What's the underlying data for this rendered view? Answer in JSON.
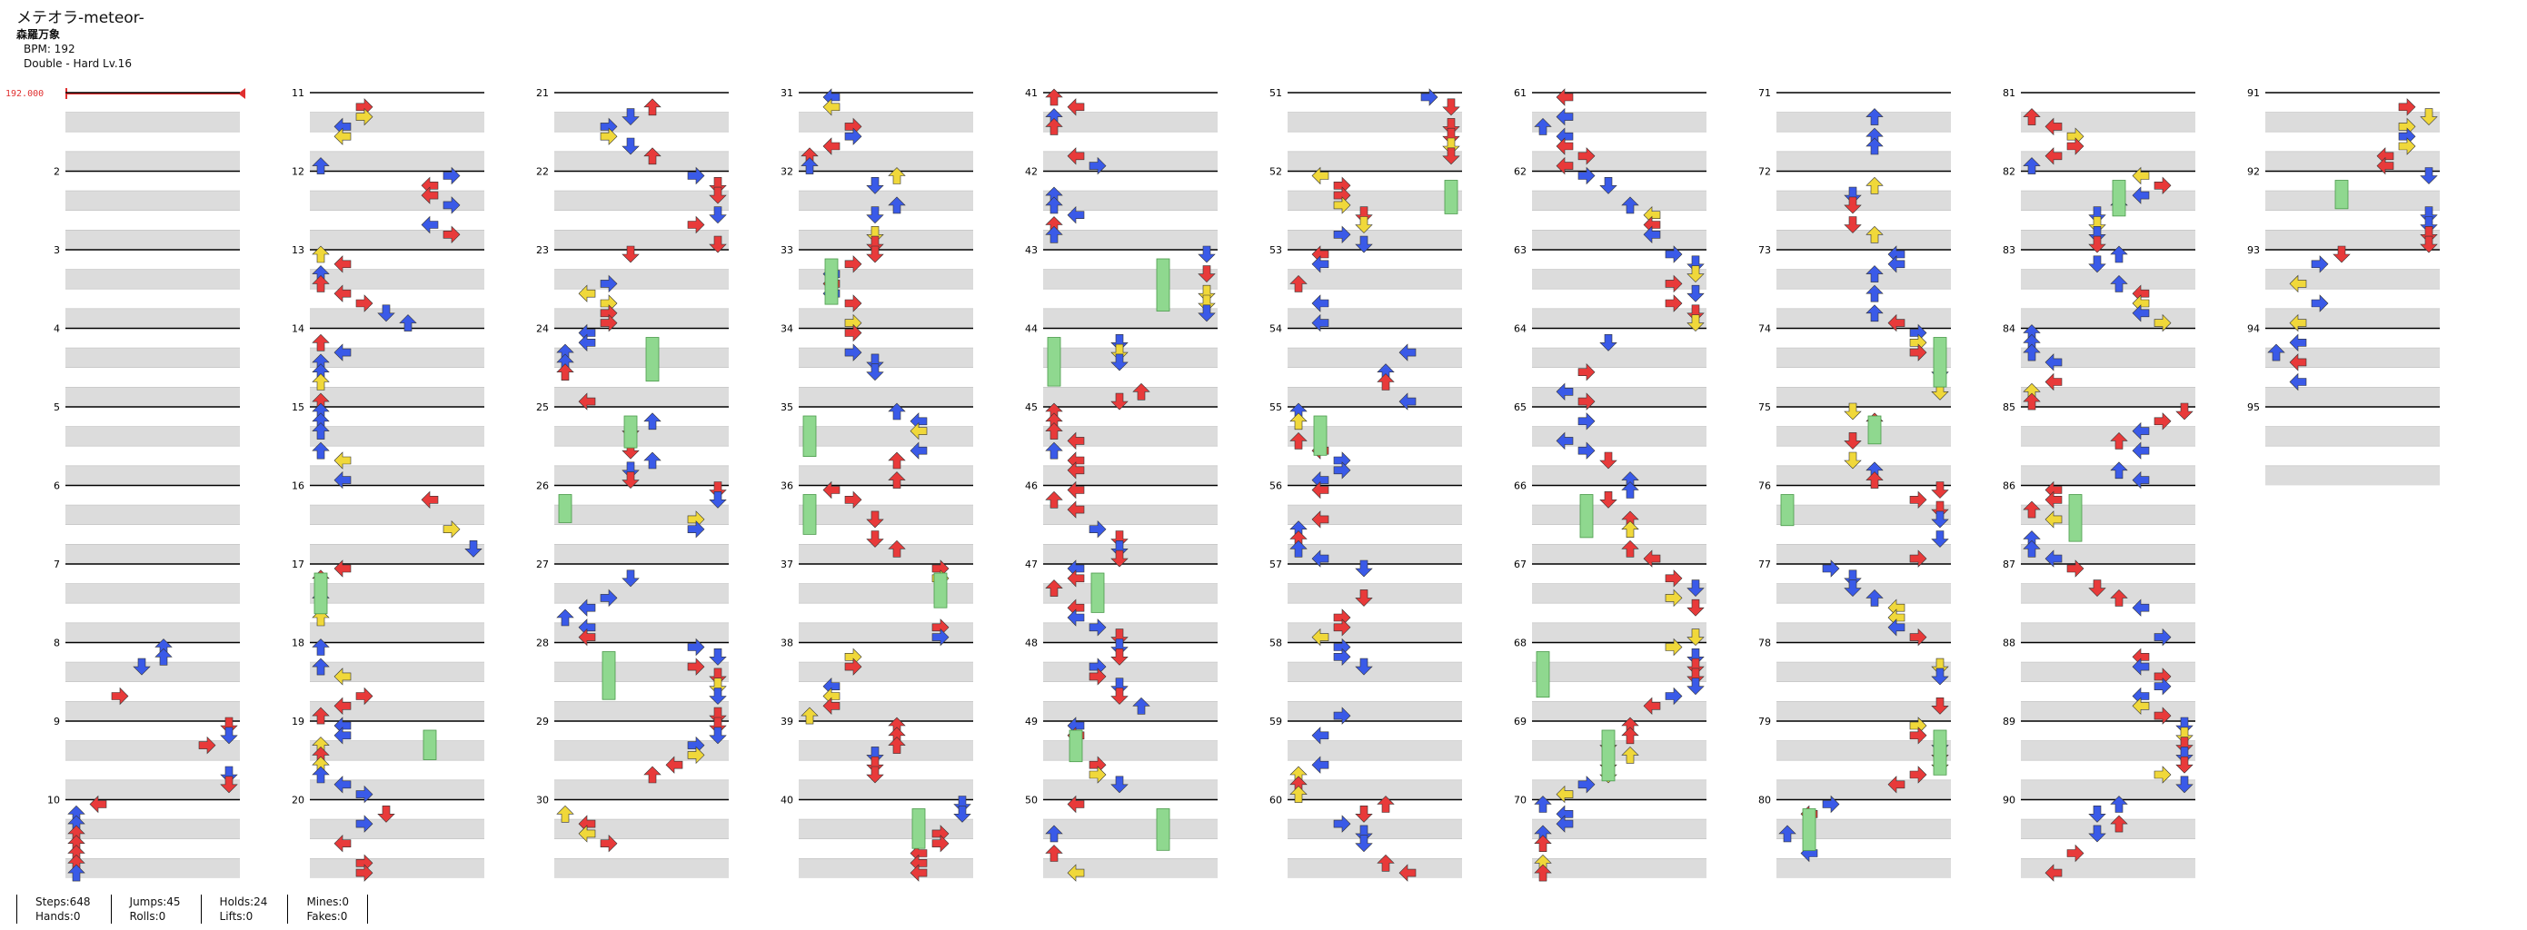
{
  "header": {
    "title": "メテオラ-meteor-",
    "artist": "森羅万象",
    "bpm_line": "BPM: 192",
    "difficulty_line": "Double - Hard Lv.16"
  },
  "bpm_marker": {
    "value": "192.000"
  },
  "chart": {
    "columns": 10,
    "measures_per_column": 10,
    "last_measure": 95,
    "panels": 8,
    "arrow_colors": {
      "quarter": "#e83a3a",
      "eighth": "#3a5ae8",
      "sixteenth": "#f0d83a",
      "higher": "#b050e0",
      "hold": "#8fd88f"
    },
    "measure_numbers": [
      2,
      3,
      4,
      5,
      6,
      7,
      8,
      9,
      10,
      11,
      12,
      13,
      14,
      15,
      16,
      17,
      18,
      19,
      20,
      21,
      22,
      23,
      24,
      25,
      26,
      27,
      28,
      29,
      30,
      31,
      32,
      33,
      34,
      35,
      36,
      37,
      38,
      39,
      40,
      41,
      42,
      43,
      44,
      45,
      46,
      47,
      48,
      49,
      50,
      51,
      52,
      53,
      54,
      55,
      56,
      57,
      58,
      59,
      60,
      61,
      62,
      63,
      64,
      65,
      66,
      67,
      68,
      69,
      70,
      71,
      72,
      73,
      74,
      75,
      76,
      77,
      78,
      79,
      80,
      81,
      82,
      83,
      84,
      85,
      86,
      87,
      88,
      89,
      90,
      91,
      92,
      93,
      94,
      95
    ]
  },
  "stats": [
    {
      "a": "Steps:648",
      "b": "Hands:0"
    },
    {
      "a": "Jumps:45",
      "b": "Rolls:0"
    },
    {
      "a": "Holds:24",
      "b": "Lifts:0"
    },
    {
      "a": "Mines:0",
      "b": "Fakes:0"
    }
  ]
}
